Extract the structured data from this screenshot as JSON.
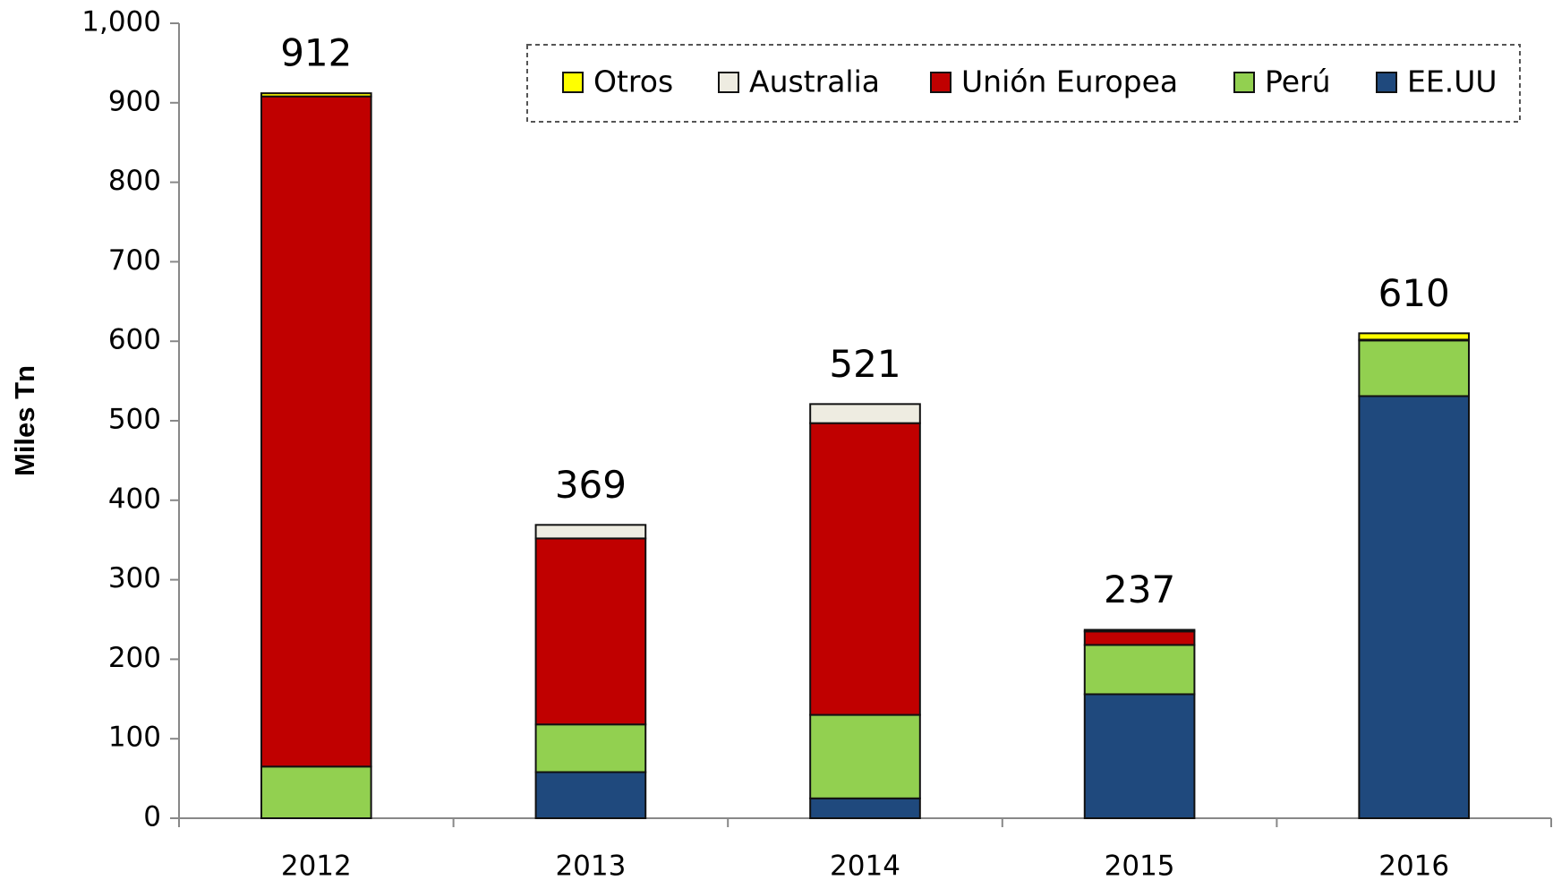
{
  "chart_data": {
    "type": "stacked_bar",
    "y_label": "Miles Tn",
    "categories": [
      "2012",
      "2013",
      "2014",
      "2015",
      "2016"
    ],
    "series": [
      {
        "name": "EE.UU",
        "color": "#1f497d",
        "values": [
          0,
          58,
          25,
          156,
          531
        ]
      },
      {
        "name": "Perú",
        "color": "#92d050",
        "values": [
          65,
          60,
          105,
          62,
          70
        ]
      },
      {
        "name": "Unión Europea",
        "color": "#c00000",
        "values": [
          843,
          234,
          367,
          17,
          0
        ]
      },
      {
        "name": "Australia",
        "color": "#eeece1",
        "values": [
          0,
          17,
          24,
          0,
          1
        ]
      },
      {
        "name": "Otros",
        "color": "#ffff00",
        "values": [
          4,
          0,
          0,
          2,
          8
        ]
      }
    ],
    "totals": [
      912,
      369,
      521,
      237,
      610
    ],
    "ylim": [
      0,
      1000
    ],
    "yticks": [
      0,
      100,
      200,
      300,
      400,
      500,
      600,
      700,
      800,
      900,
      {
        "value": 1000,
        "label": "1,000"
      }
    ]
  }
}
